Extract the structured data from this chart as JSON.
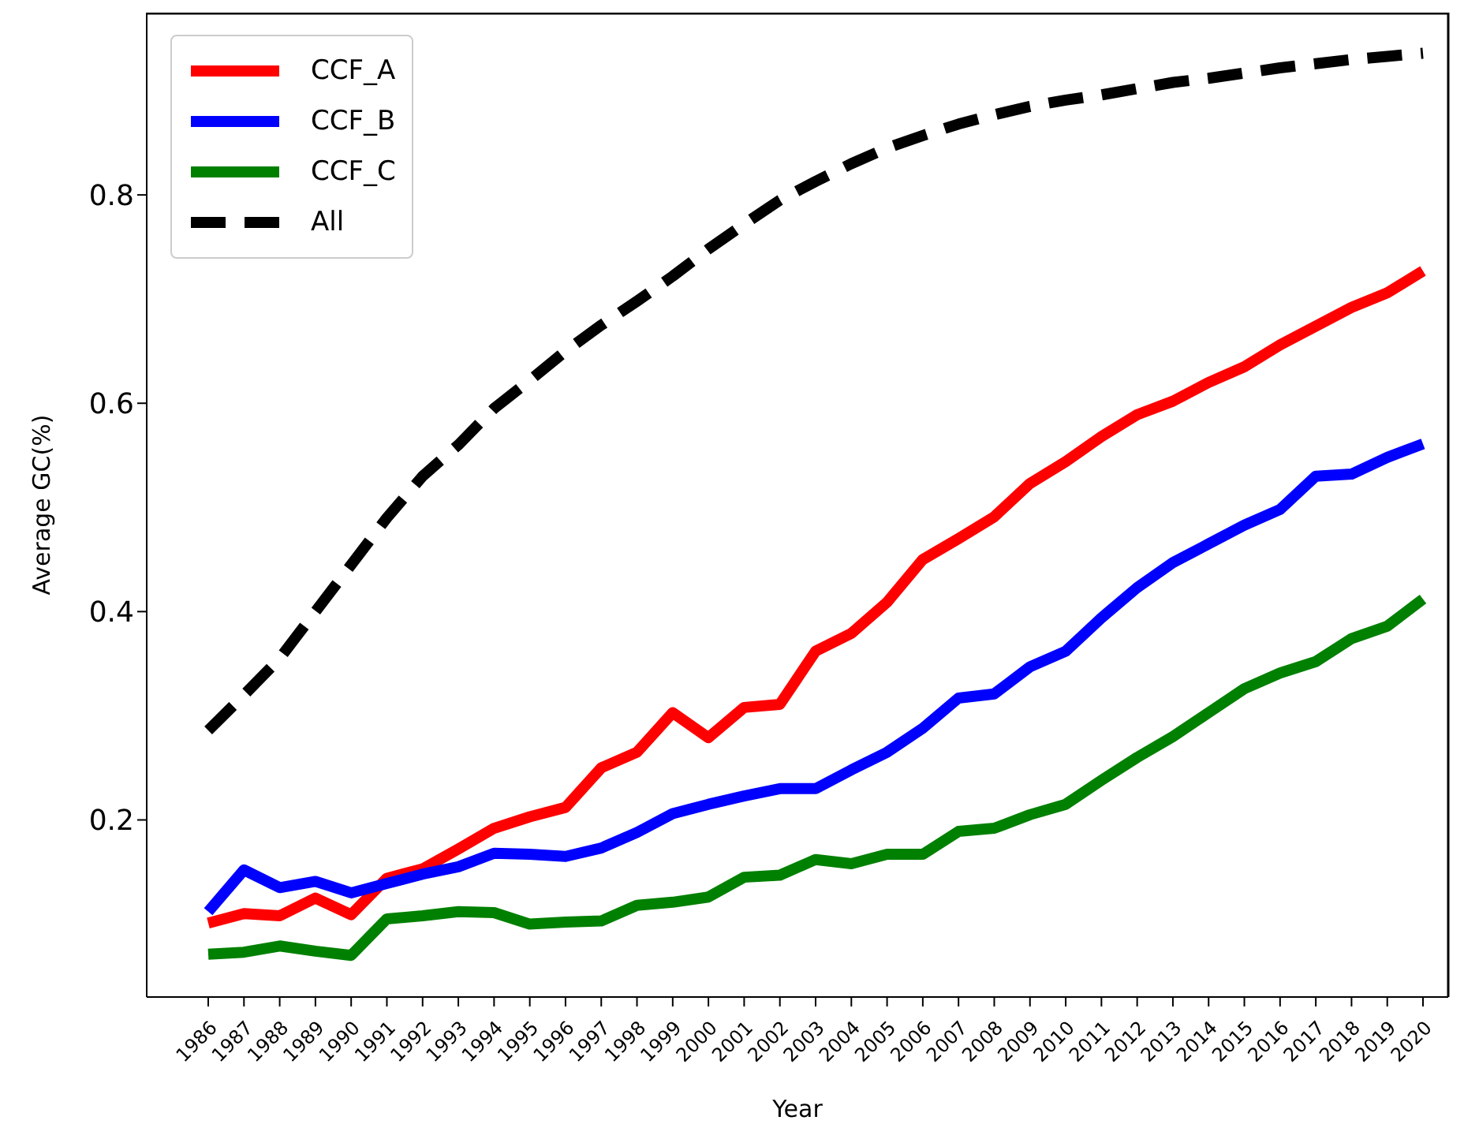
{
  "chart_data": {
    "type": "line",
    "xlabel": "Year",
    "ylabel": "Average GC(%)",
    "categories": [
      "1986",
      "1987",
      "1988",
      "1989",
      "1990",
      "1991",
      "1992",
      "1993",
      "1994",
      "1995",
      "1996",
      "1997",
      "1998",
      "1999",
      "2000",
      "2001",
      "2002",
      "2003",
      "2004",
      "2005",
      "2006",
      "2007",
      "2008",
      "2009",
      "2010",
      "2011",
      "2012",
      "2013",
      "2014",
      "2015",
      "2016",
      "2017",
      "2018",
      "2019",
      "2020"
    ],
    "series": [
      {
        "name": "CCF_A",
        "color": "#ff0000",
        "line_style": "solid",
        "values": [
          0.101,
          0.11,
          0.108,
          0.125,
          0.109,
          0.144,
          0.153,
          0.172,
          0.192,
          0.203,
          0.212,
          0.25,
          0.265,
          0.303,
          0.279,
          0.308,
          0.311,
          0.362,
          0.379,
          0.409,
          0.45,
          0.47,
          0.491,
          0.523,
          0.544,
          0.568,
          0.589,
          0.602,
          0.62,
          0.635,
          0.656,
          0.674,
          0.692,
          0.706,
          0.727
        ]
      },
      {
        "name": "CCF_B",
        "color": "#0000ff",
        "line_style": "solid",
        "values": [
          0.112,
          0.152,
          0.135,
          0.141,
          0.13,
          0.139,
          0.148,
          0.155,
          0.168,
          0.167,
          0.165,
          0.173,
          0.188,
          0.206,
          0.215,
          0.223,
          0.23,
          0.23,
          0.248,
          0.265,
          0.288,
          0.317,
          0.321,
          0.347,
          0.362,
          0.394,
          0.423,
          0.447,
          0.465,
          0.483,
          0.498,
          0.53,
          0.532,
          0.548,
          0.561
        ]
      },
      {
        "name": "CCF_C",
        "color": "#008000",
        "line_style": "solid",
        "values": [
          0.071,
          0.073,
          0.079,
          0.074,
          0.07,
          0.105,
          0.108,
          0.112,
          0.111,
          0.1,
          0.102,
          0.103,
          0.118,
          0.121,
          0.126,
          0.145,
          0.147,
          0.162,
          0.158,
          0.167,
          0.167,
          0.189,
          0.192,
          0.205,
          0.215,
          0.238,
          0.26,
          0.28,
          0.303,
          0.326,
          0.341,
          0.352,
          0.374,
          0.386,
          0.412
        ]
      },
      {
        "name": "All",
        "color": "#000000",
        "line_style": "dashed",
        "values": [
          0.286,
          0.32,
          0.355,
          0.4,
          0.445,
          0.49,
          0.53,
          0.56,
          0.595,
          0.622,
          0.65,
          0.675,
          0.698,
          0.722,
          0.748,
          0.772,
          0.795,
          0.813,
          0.83,
          0.845,
          0.857,
          0.868,
          0.877,
          0.885,
          0.891,
          0.896,
          0.902,
          0.908,
          0.912,
          0.917,
          0.922,
          0.926,
          0.93,
          0.933,
          0.936
        ]
      }
    ],
    "ylim": [
      0.03,
      0.975
    ],
    "yticks": [
      0.2,
      0.4,
      0.6,
      0.8
    ],
    "grid": false,
    "legend": "top left",
    "marker": "none"
  }
}
